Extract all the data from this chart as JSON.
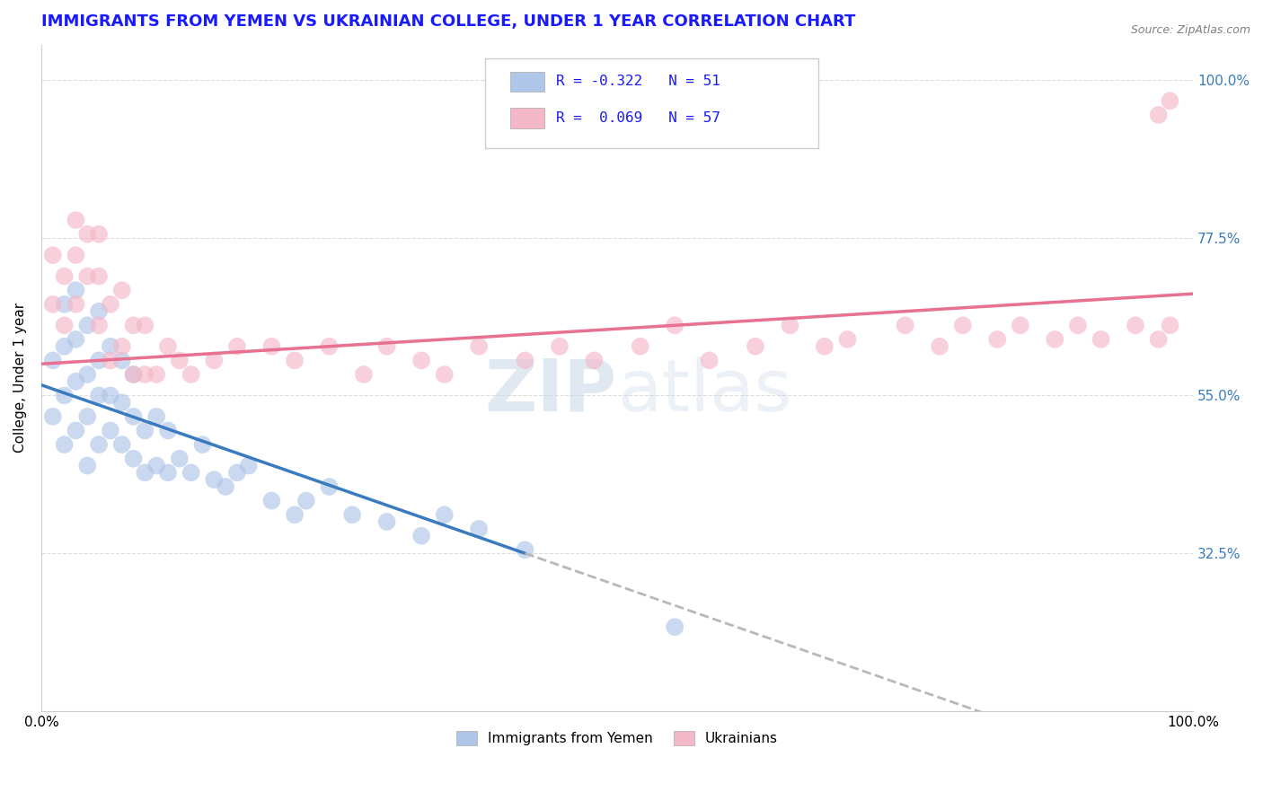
{
  "title": "IMMIGRANTS FROM YEMEN VS UKRAINIAN COLLEGE, UNDER 1 YEAR CORRELATION CHART",
  "source_text": "Source: ZipAtlas.com",
  "ylabel": "College, Under 1 year",
  "xlim": [
    0.0,
    1.0
  ],
  "ylim": [
    0.1,
    1.05
  ],
  "yticks": [
    0.325,
    0.55,
    0.775,
    1.0
  ],
  "ytick_labels": [
    "32.5%",
    "55.0%",
    "77.5%",
    "100.0%"
  ],
  "legend_label1": "R = -0.322   N = 51",
  "legend_label2": "R =  0.069   N = 57",
  "legend_names": [
    "Immigrants from Yemen",
    "Ukrainians"
  ],
  "watermark": "ZIPatlas",
  "blue_scatter_color": "#aec6e8",
  "pink_scatter_color": "#f4b8c8",
  "blue_line_color": "#3a7bbf",
  "pink_line_color": "#e87090",
  "dashed_line_color": "#b8b8b8",
  "title_color": "#1a1aff",
  "title_fontsize": 13,
  "blue_color_box": "#aec6e8",
  "pink_color_box": "#f4b8c8",
  "blue_points_x": [
    0.01,
    0.01,
    0.02,
    0.02,
    0.02,
    0.02,
    0.03,
    0.03,
    0.03,
    0.03,
    0.04,
    0.04,
    0.04,
    0.04,
    0.05,
    0.05,
    0.05,
    0.05,
    0.06,
    0.06,
    0.06,
    0.07,
    0.07,
    0.07,
    0.08,
    0.08,
    0.08,
    0.09,
    0.09,
    0.1,
    0.1,
    0.11,
    0.11,
    0.12,
    0.13,
    0.14,
    0.15,
    0.16,
    0.17,
    0.18,
    0.2,
    0.22,
    0.23,
    0.25,
    0.27,
    0.3,
    0.33,
    0.35,
    0.38,
    0.42,
    0.55
  ],
  "blue_points_y": [
    0.52,
    0.6,
    0.48,
    0.55,
    0.62,
    0.68,
    0.5,
    0.57,
    0.63,
    0.7,
    0.45,
    0.52,
    0.58,
    0.65,
    0.48,
    0.55,
    0.6,
    0.67,
    0.5,
    0.55,
    0.62,
    0.48,
    0.54,
    0.6,
    0.46,
    0.52,
    0.58,
    0.44,
    0.5,
    0.45,
    0.52,
    0.44,
    0.5,
    0.46,
    0.44,
    0.48,
    0.43,
    0.42,
    0.44,
    0.45,
    0.4,
    0.38,
    0.4,
    0.42,
    0.38,
    0.37,
    0.35,
    0.38,
    0.36,
    0.33,
    0.22
  ],
  "pink_points_x": [
    0.01,
    0.01,
    0.02,
    0.02,
    0.03,
    0.03,
    0.03,
    0.04,
    0.04,
    0.05,
    0.05,
    0.05,
    0.06,
    0.06,
    0.07,
    0.07,
    0.08,
    0.08,
    0.09,
    0.09,
    0.1,
    0.11,
    0.12,
    0.13,
    0.15,
    0.17,
    0.2,
    0.22,
    0.25,
    0.28,
    0.3,
    0.33,
    0.35,
    0.38,
    0.42,
    0.45,
    0.48,
    0.52,
    0.55,
    0.58,
    0.62,
    0.65,
    0.68,
    0.7,
    0.75,
    0.78,
    0.8,
    0.83,
    0.85,
    0.88,
    0.9,
    0.92,
    0.95,
    0.97,
    0.97,
    0.98,
    0.98
  ],
  "pink_points_y": [
    0.68,
    0.75,
    0.65,
    0.72,
    0.68,
    0.75,
    0.8,
    0.72,
    0.78,
    0.65,
    0.72,
    0.78,
    0.6,
    0.68,
    0.62,
    0.7,
    0.58,
    0.65,
    0.58,
    0.65,
    0.58,
    0.62,
    0.6,
    0.58,
    0.6,
    0.62,
    0.62,
    0.6,
    0.62,
    0.58,
    0.62,
    0.6,
    0.58,
    0.62,
    0.6,
    0.62,
    0.6,
    0.62,
    0.65,
    0.6,
    0.62,
    0.65,
    0.62,
    0.63,
    0.65,
    0.62,
    0.65,
    0.63,
    0.65,
    0.63,
    0.65,
    0.63,
    0.65,
    0.63,
    0.95,
    0.65,
    0.97
  ],
  "blue_line_x_start": 0.0,
  "blue_line_x_end": 0.42,
  "blue_line_y_start": 0.565,
  "blue_line_y_end": 0.325,
  "dashed_line_x_start": 0.42,
  "dashed_line_x_end": 1.0,
  "pink_line_x_start": 0.0,
  "pink_line_x_end": 1.0,
  "pink_line_y_start": 0.595,
  "pink_line_y_end": 0.695
}
